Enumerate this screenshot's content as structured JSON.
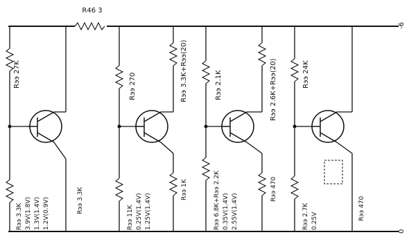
{
  "rails": {
    "top_label": "-6",
    "bottom_label": "0"
  },
  "series_resistor": {
    "label": "R46 3"
  },
  "stages": [
    {
      "id": "s1",
      "top_resistor": "Rээ 27K",
      "top_resistor_prefix": "x",
      "base_resistor_lines": [
        "Rээ 3.3K",
        "3.9V(1.8V)",
        "1.3V(1.4V)",
        "1.2V(0.9V)"
      ],
      "emitter_label": "Rээ 3.3K",
      "has_mid_resistor": false
    },
    {
      "id": "s2",
      "top_resistor": "Rээ 270",
      "top_resistor_prefix": "x",
      "mid_resistor": "Rээ 3.3K+Rээ(20)",
      "base_resistor_lines": [
        "Rээ 11K",
        "0.25V(1.4V)",
        "1.25V(1.4V)"
      ],
      "emitter_label": "Rээ 1K",
      "has_mid_resistor": true
    },
    {
      "id": "s3",
      "top_resistor": "Rээ 2.1K",
      "mid_resistor": "Rээ 2.6K+Rээ(20)",
      "base_resistor_lines": [
        "Rээ 6.8K+Rээ 2.2K",
        "0.35V(1.4V)",
        "2.55V(1.4V)"
      ],
      "emitter_label": "Rээ 470",
      "has_mid_resistor": true
    },
    {
      "id": "s4",
      "top_resistor": "Rээ 24K",
      "base_resistor_lines": [
        "Rээ 2.7K",
        "0.25V"
      ],
      "emitter_label": "Rээ 470",
      "has_mid_resistor": false
    }
  ]
}
